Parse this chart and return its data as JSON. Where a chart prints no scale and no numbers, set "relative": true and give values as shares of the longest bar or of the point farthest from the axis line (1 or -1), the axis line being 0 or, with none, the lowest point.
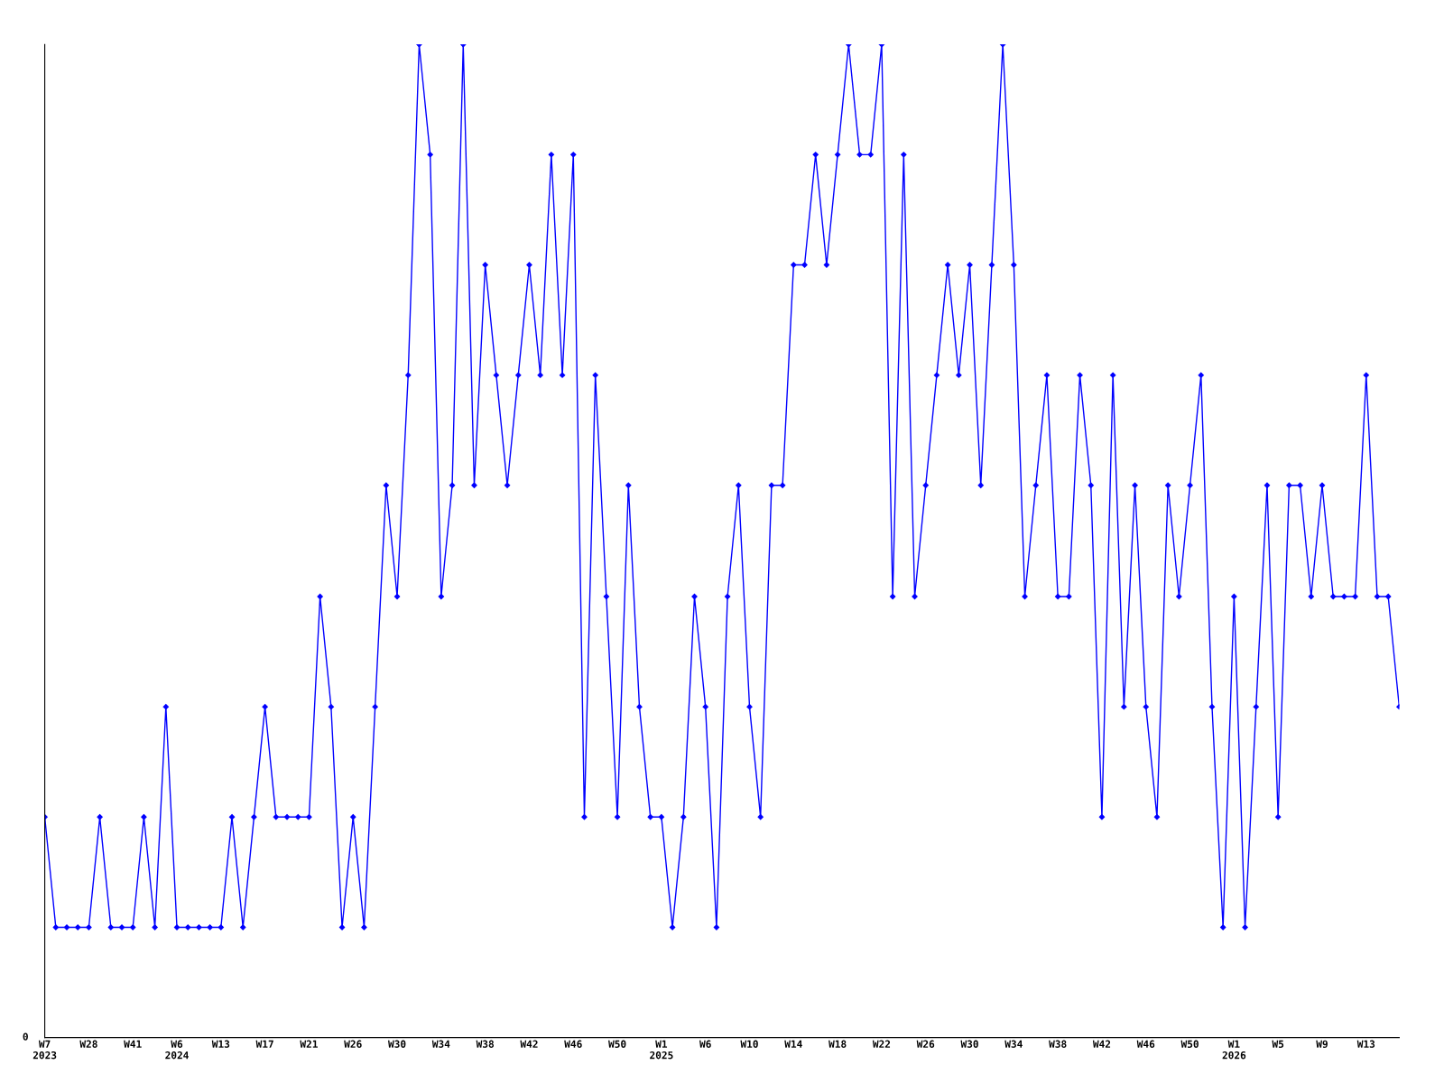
{
  "chart_data": {
    "type": "line",
    "relative": true,
    "marker": "diamond",
    "line_style": "solid",
    "grid": false,
    "legend": false,
    "annotations": [
      "0"
    ],
    "categories": [
      "W7\n2023",
      null,
      null,
      null,
      "W28",
      null,
      null,
      null,
      "W41",
      null,
      null,
      null,
      "W6\n2024",
      null,
      null,
      null,
      "W13",
      null,
      null,
      null,
      "W17",
      null,
      null,
      null,
      "W21",
      null,
      null,
      null,
      "W26",
      null,
      null,
      null,
      "W30",
      null,
      null,
      null,
      "W34",
      null,
      null,
      null,
      "W38",
      null,
      null,
      null,
      "W42",
      null,
      null,
      null,
      "W46",
      null,
      null,
      null,
      "W50",
      null,
      null,
      null,
      "W1\n2025",
      null,
      null,
      null,
      "W6",
      null,
      null,
      null,
      "W10",
      null,
      null,
      null,
      "W14",
      null,
      null,
      null,
      "W18",
      null,
      null,
      null,
      "W22",
      null,
      null,
      null,
      "W26",
      null,
      null,
      null,
      "W30",
      null,
      null,
      null,
      "W34",
      null,
      null,
      null,
      "W38",
      null,
      null,
      null,
      "W42",
      null,
      null,
      null,
      "W46",
      null,
      null,
      null,
      "W50",
      null,
      null,
      null,
      "W1\n2026",
      null,
      null,
      null,
      "W5",
      null,
      null,
      null,
      "W9",
      null,
      null,
      null,
      "W13",
      null,
      null,
      null
    ],
    "series": [
      {
        "color": "#0000ff",
        "values": [
          0.222,
          0.111,
          0.111,
          0.111,
          0.111,
          0.222,
          0.111,
          0.111,
          0.111,
          0.222,
          0.111,
          0.333,
          0.111,
          0.111,
          0.111,
          0.111,
          0.111,
          0.222,
          0.111,
          0.222,
          0.333,
          0.222,
          0.222,
          0.222,
          0.222,
          0.444,
          0.333,
          0.111,
          0.222,
          0.111,
          0.333,
          0.556,
          0.444,
          0.667,
          1,
          0.889,
          0.444,
          0.556,
          1,
          0.556,
          0.778,
          0.667,
          0.556,
          0.667,
          0.778,
          0.667,
          0.889,
          0.667,
          0.889,
          0.222,
          0.667,
          0.444,
          0.222,
          0.556,
          0.333,
          0.222,
          0.222,
          0.111,
          0.222,
          0.444,
          0.333,
          0.111,
          0.444,
          0.556,
          0.333,
          0.222,
          0.556,
          0.556,
          0.778,
          0.778,
          0.889,
          0.778,
          0.889,
          1,
          0.889,
          0.889,
          1,
          0.444,
          0.889,
          0.444,
          0.556,
          0.667,
          0.778,
          0.667,
          0.778,
          0.556,
          0.778,
          1,
          0.778,
          0.444,
          0.556,
          0.667,
          0.444,
          0.444,
          0.667,
          0.556,
          0.222,
          0.667,
          0.333,
          0.556,
          0.333,
          0.222,
          0.556,
          0.444,
          0.556,
          0.667,
          0.333,
          0.111,
          0.444,
          0.111,
          0.333,
          0.556,
          0.222,
          0.556,
          0.556,
          0.444,
          0.556,
          0.444,
          0.444,
          0.444,
          0.667,
          0.444,
          0.444,
          0.333
        ]
      }
    ]
  }
}
